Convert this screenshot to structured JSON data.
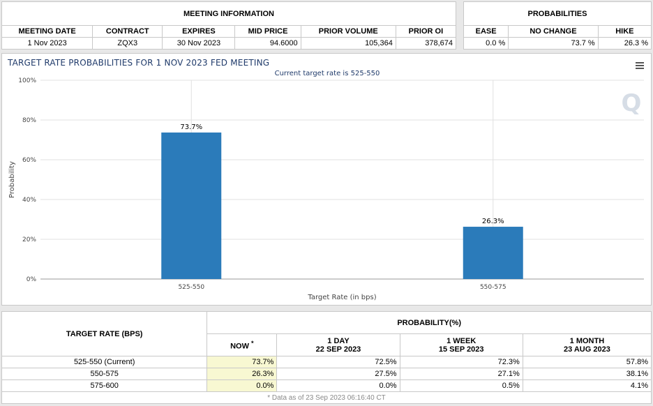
{
  "meeting_info": {
    "title": "MEETING INFORMATION",
    "headers": [
      "MEETING DATE",
      "CONTRACT",
      "EXPIRES",
      "MID PRICE",
      "PRIOR VOLUME",
      "PRIOR OI"
    ],
    "row": [
      "1 Nov 2023",
      "ZQX3",
      "30 Nov 2023",
      "94.6000",
      "105,364",
      "378,674"
    ]
  },
  "probabilities": {
    "title": "PROBABILITIES",
    "headers": [
      "EASE",
      "NO CHANGE",
      "HIKE"
    ],
    "row": [
      "0.0 %",
      "73.7 %",
      "26.3 %"
    ]
  },
  "chart": {
    "title": "TARGET RATE PROBABILITIES FOR 1 NOV 2023 FED MEETING",
    "subtitle": "Current target rate is 525-550",
    "watermark": "Q"
  },
  "chart_data": {
    "type": "bar",
    "categories": [
      "525-550",
      "550-575"
    ],
    "values": [
      73.7,
      26.3
    ],
    "data_labels": [
      "73.7%",
      "26.3%"
    ],
    "title": "TARGET RATE PROBABILITIES FOR 1 NOV 2023 FED MEETING",
    "subtitle": "Current target rate is 525-550",
    "xlabel": "Target Rate (in bps)",
    "ylabel": "Probability",
    "ylim": [
      0,
      100
    ],
    "yticks": [
      0,
      20,
      40,
      60,
      80,
      100
    ],
    "ytick_labels": [
      "0%",
      "20%",
      "40%",
      "60%",
      "80%",
      "100%"
    ],
    "grid": true,
    "bar_color": "#2b7bba"
  },
  "bottom": {
    "target_header": "TARGET RATE (BPS)",
    "prob_header": "PROBABILITY(%)",
    "now_label": "NOW",
    "now_mark": "*",
    "col1_line1": "1 DAY",
    "col1_line2": "22 SEP 2023",
    "col2_line1": "1 WEEK",
    "col2_line2": "15 SEP 2023",
    "col3_line1": "1 MONTH",
    "col3_line2": "23 AUG 2023",
    "rows": [
      {
        "rate": "525-550 (Current)",
        "now": "73.7%",
        "d1": "72.5%",
        "w1": "72.3%",
        "m1": "57.8%"
      },
      {
        "rate": "550-575",
        "now": "26.3%",
        "d1": "27.5%",
        "w1": "27.1%",
        "m1": "38.1%"
      },
      {
        "rate": "575-600",
        "now": "0.0%",
        "d1": "0.0%",
        "w1": "0.5%",
        "m1": "4.1%"
      }
    ],
    "footnote": "* Data as of 23 Sep 2023 06:16:40 CT"
  },
  "colors": {
    "accent": "#2b7bba",
    "now_bg": "#f8f8d2",
    "title": "#1f3a6a"
  }
}
